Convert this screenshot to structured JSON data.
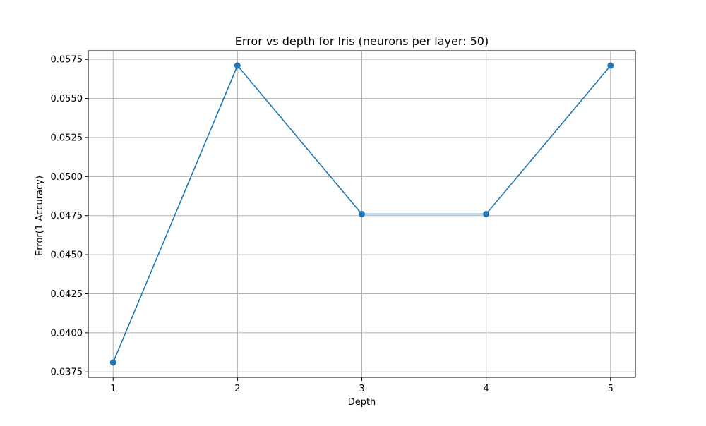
{
  "chart_data": {
    "type": "line",
    "title": "Error vs depth for Iris (neurons per layer: 50)",
    "xlabel": "Depth",
    "ylabel": "Error(1-Accuracy)",
    "x": [
      1,
      2,
      3,
      4,
      5
    ],
    "series": [
      {
        "values": [
          0.0381,
          0.0571,
          0.0476,
          0.0476,
          0.0571
        ],
        "color": "#1f77b4",
        "marker": "circle"
      }
    ],
    "xlim": [
      0.8,
      5.2
    ],
    "ylim": [
      0.03715,
      0.05805
    ],
    "xticks": [
      1,
      2,
      3,
      4,
      5
    ],
    "xtick_labels": [
      "1",
      "2",
      "3",
      "4",
      "5"
    ],
    "yticks": [
      0.0375,
      0.04,
      0.0425,
      0.045,
      0.0475,
      0.05,
      0.0525,
      0.055,
      0.0575
    ],
    "ytick_labels": [
      "0.0375",
      "0.0400",
      "0.0425",
      "0.0450",
      "0.0475",
      "0.0500",
      "0.0525",
      "0.0550",
      "0.0575"
    ],
    "grid": true,
    "grid_color": "#b0b0b0",
    "legend": false
  }
}
